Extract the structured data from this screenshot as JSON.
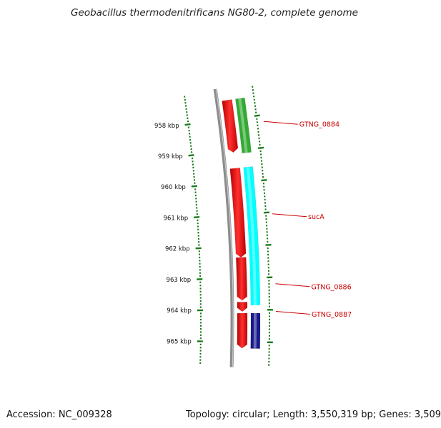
{
  "title": "Geobacillus thermodenitrificans NG80-2, complete genome",
  "footer": {
    "accession": "Accession: NC_009328",
    "summary": "Topology: circular; Length: 3,550,319 bp; Genes: 3,509"
  },
  "colors": {
    "backbone": "#8c8c8c",
    "forward_cds": "#ff0000",
    "reverse_cds_green": "#33aa33",
    "reverse_cds_cyan": "#00ffff",
    "reverse_cds_navy": "#1a1a8c",
    "tick": "#1a7a1a",
    "label": "#cc0000"
  },
  "scale": {
    "unit": "kbp",
    "ticks": [
      {
        "kbp": 958,
        "label": "958 kbp"
      },
      {
        "kbp": 959,
        "label": "959 kbp"
      },
      {
        "kbp": 960,
        "label": "960 kbp"
      },
      {
        "kbp": 961,
        "label": "961 kbp"
      },
      {
        "kbp": 962,
        "label": "962 kbp"
      },
      {
        "kbp": 963,
        "label": "963 kbp"
      },
      {
        "kbp": 964,
        "label": "964 kbp"
      },
      {
        "kbp": 965,
        "label": "965 kbp"
      }
    ]
  },
  "features": [
    {
      "strand": "+",
      "start_kbp": 957.4,
      "end_kbp": 959.05,
      "color": "#ff0000"
    },
    {
      "strand": "+",
      "start_kbp": 959.55,
      "end_kbp": 962.35,
      "color": "#ff0000"
    },
    {
      "strand": "+",
      "start_kbp": 962.35,
      "end_kbp": 963.7,
      "color": "#ff0000"
    },
    {
      "strand": "+",
      "start_kbp": 963.75,
      "end_kbp": 964.05,
      "color": "#ff0000"
    },
    {
      "strand": "+",
      "start_kbp": 964.1,
      "end_kbp": 965.2,
      "color": "#ff0000"
    },
    {
      "strand": "-",
      "start_kbp": 957.4,
      "end_kbp": 959.1,
      "color": "#33aa33"
    },
    {
      "strand": "-",
      "start_kbp": 959.55,
      "end_kbp": 963.85,
      "color": "#00ffff"
    },
    {
      "strand": "-",
      "start_kbp": 964.1,
      "end_kbp": 965.2,
      "color": "#1a1a8c"
    }
  ],
  "gene_labels": [
    {
      "name": "GTNG_0884",
      "kbp": 958.2
    },
    {
      "name": "sucA",
      "kbp": 961.05
    },
    {
      "name": "GTNG_0886",
      "kbp": 963.2
    },
    {
      "name": "GTNG_0887",
      "kbp": 964.05
    }
  ]
}
